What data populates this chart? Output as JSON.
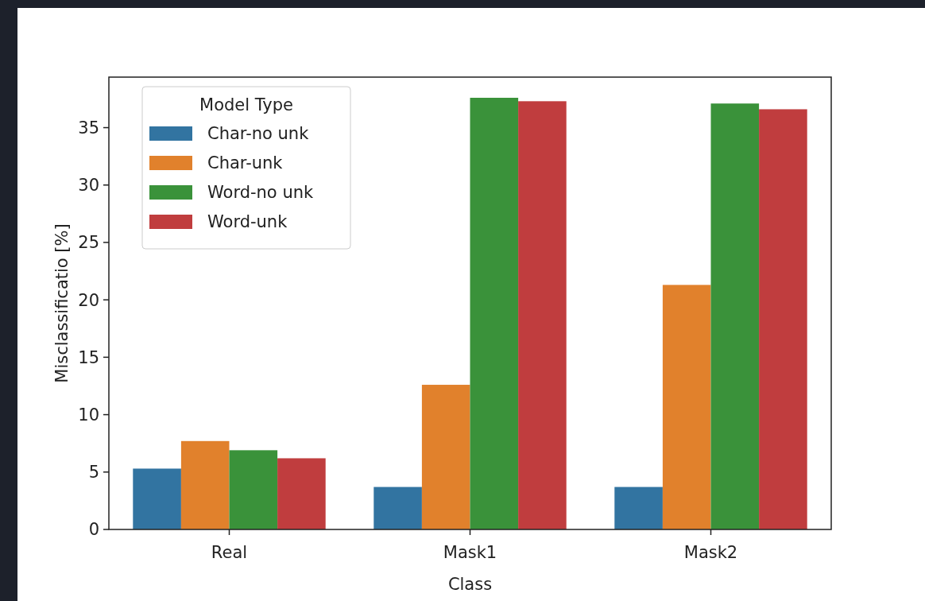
{
  "chart_data": {
    "type": "bar",
    "xlabel": "Class",
    "ylabel": "Misclassificatio [%]",
    "legend_title": "Model Type",
    "categories": [
      "Real",
      "Mask1",
      "Mask2"
    ],
    "series": [
      {
        "name": "Char-no unk",
        "color": "#3274a1",
        "values": [
          5.3,
          3.7,
          3.7
        ]
      },
      {
        "name": "Char-unk",
        "color": "#e1812c",
        "values": [
          7.7,
          12.6,
          21.3
        ]
      },
      {
        "name": "Word-no unk",
        "color": "#3a923a",
        "values": [
          6.9,
          37.6,
          37.1
        ]
      },
      {
        "name": "Word-unk",
        "color": "#c03d3e",
        "values": [
          6.2,
          37.3,
          36.6
        ]
      }
    ],
    "ylim": [
      0,
      39.4
    ],
    "yticks": [
      0,
      5,
      10,
      15,
      20,
      25,
      30,
      35
    ],
    "grid": false,
    "legend": "top left"
  }
}
